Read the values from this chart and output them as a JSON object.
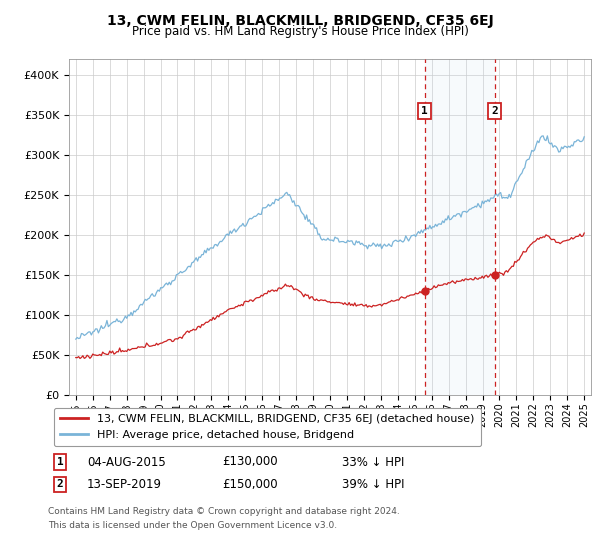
{
  "title": "13, CWM FELIN, BLACKMILL, BRIDGEND, CF35 6EJ",
  "subtitle": "Price paid vs. HM Land Registry's House Price Index (HPI)",
  "ylim": [
    0,
    420000
  ],
  "yticks": [
    0,
    50000,
    100000,
    150000,
    200000,
    250000,
    300000,
    350000,
    400000
  ],
  "ytick_labels": [
    "£0",
    "£50K",
    "£100K",
    "£150K",
    "£200K",
    "£250K",
    "£300K",
    "£350K",
    "£400K"
  ],
  "hpi_color": "#7ab4d8",
  "price_color": "#cc2222",
  "sale1_year": 2015.58,
  "sale1_price": 130000,
  "sale2_year": 2019.71,
  "sale2_price": 150000,
  "legend_line1": "13, CWM FELIN, BLACKMILL, BRIDGEND, CF35 6EJ (detached house)",
  "legend_line2": "HPI: Average price, detached house, Bridgend",
  "sale1_label": "1",
  "sale1_text": "04-AUG-2015",
  "sale1_price_str": "£130,000",
  "sale1_pct": "33% ↓ HPI",
  "sale2_label": "2",
  "sale2_text": "13-SEP-2019",
  "sale2_price_str": "£150,000",
  "sale2_pct": "39% ↓ HPI",
  "footnote1": "Contains HM Land Registry data © Crown copyright and database right 2024.",
  "footnote2": "This data is licensed under the Open Government Licence v3.0.",
  "bg_color": "#ffffff",
  "grid_color": "#cccccc",
  "shade_color": "#cce0f0"
}
